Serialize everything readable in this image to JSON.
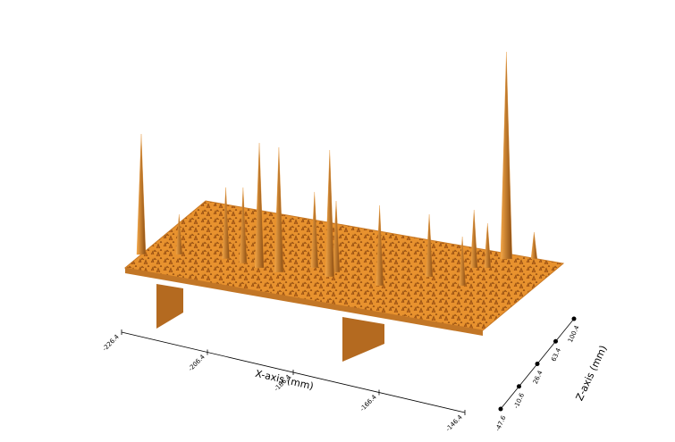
{
  "chart_data": {
    "type": "surface3d",
    "x_label": "X-axis (mm)",
    "z_label": "Z-axis (mm)",
    "xlim": [
      -226.4,
      -146.4
    ],
    "xticks": [
      -226.4,
      -206.4,
      -186.4,
      -166.4,
      -146.4
    ],
    "zlim": [
      -47.6,
      100.4
    ],
    "zticks": [
      -47.6,
      -10.6,
      26.4,
      63.4,
      100.4
    ],
    "color": "#e8922e",
    "peaks": {
      "x": [
        -226.4,
        -157.9,
        -201.6,
        -197.0,
        -186.6,
        -191.4,
        -186.4,
        -175.4,
        -209.8,
        -205.6,
        -168.2,
        -161.9,
        -159.4,
        -152.8,
        -160.1,
        -219.4
      ],
      "z": [
        -18.0,
        90.3,
        -4.8,
        -6.6,
        1.4,
        12.9,
        11.6,
        1.1,
        1.0,
        -1.7,
        33.1,
        63.7,
        68.0,
        99.4,
        27.4,
        -6.0
      ],
      "h": [
        135,
        232,
        140,
        140,
        142,
        85,
        80,
        90,
        80,
        85,
        70,
        65,
        50,
        30,
        55,
        45
      ]
    }
  }
}
